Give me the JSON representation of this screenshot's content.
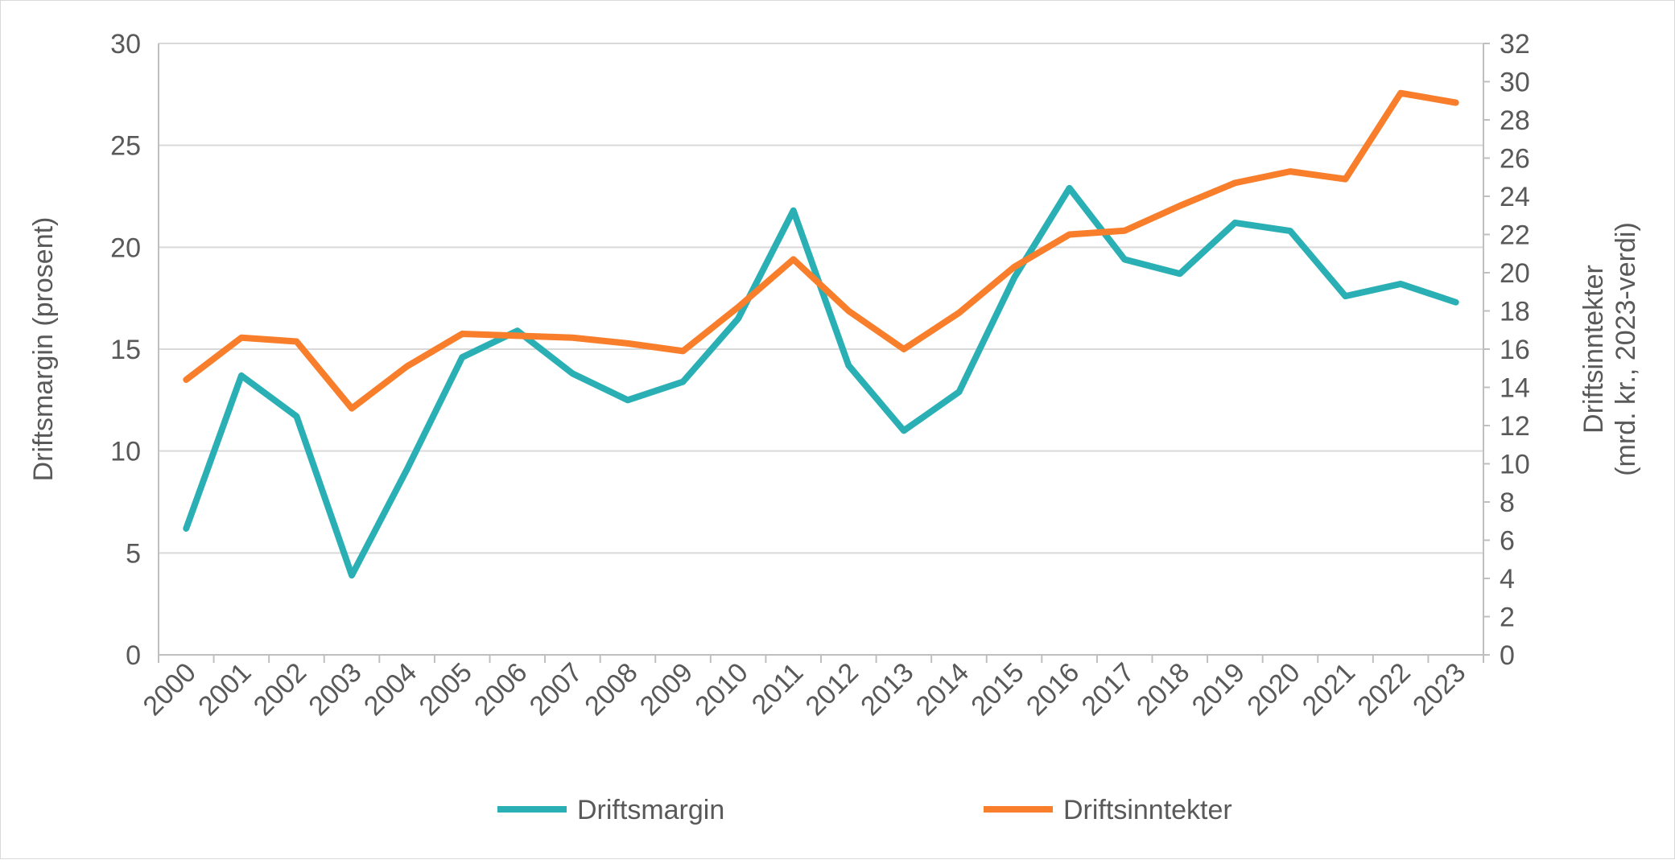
{
  "chart_data": {
    "type": "line",
    "title": "",
    "categories": [
      "2000",
      "2001",
      "2002",
      "2003",
      "2004",
      "2005",
      "2006",
      "2007",
      "2008",
      "2009",
      "2010",
      "2011",
      "2012",
      "2013",
      "2014",
      "2015",
      "2016",
      "2017",
      "2018",
      "2019",
      "2020",
      "2021",
      "2022",
      "2023"
    ],
    "ylabel": "Driftsmargin (prosent)",
    "ylabel_right_line1": "Driftsinntekter",
    "ylabel_right_line2": "(mrd. kr., 2023-verdi)",
    "ylim": [
      0,
      30
    ],
    "yticks": [
      0,
      5,
      10,
      15,
      20,
      25,
      30
    ],
    "ylim_right": [
      0,
      32
    ],
    "yticks_right": [
      0,
      2,
      4,
      6,
      8,
      10,
      12,
      14,
      16,
      18,
      20,
      22,
      24,
      26,
      28,
      30,
      32
    ],
    "grid": true,
    "legend_position": "bottom",
    "series": [
      {
        "name": "Driftsmargin",
        "axis": "left",
        "color": "#2AB0B4",
        "values": [
          6.2,
          13.7,
          11.7,
          3.9,
          9.1,
          14.6,
          15.9,
          13.8,
          12.5,
          13.4,
          16.5,
          21.8,
          14.2,
          11.0,
          12.9,
          18.5,
          22.9,
          19.4,
          18.7,
          21.2,
          20.8,
          17.6,
          18.2,
          17.3
        ]
      },
      {
        "name": "Driftsinntekter",
        "axis": "right",
        "color": "#F97E2B",
        "values": [
          14.4,
          16.6,
          16.4,
          12.9,
          15.1,
          16.8,
          16.7,
          16.6,
          16.3,
          15.9,
          18.2,
          20.7,
          18.0,
          16.0,
          17.9,
          20.3,
          22.0,
          22.2,
          23.5,
          24.7,
          25.3,
          24.9,
          29.4,
          28.9
        ]
      }
    ]
  }
}
